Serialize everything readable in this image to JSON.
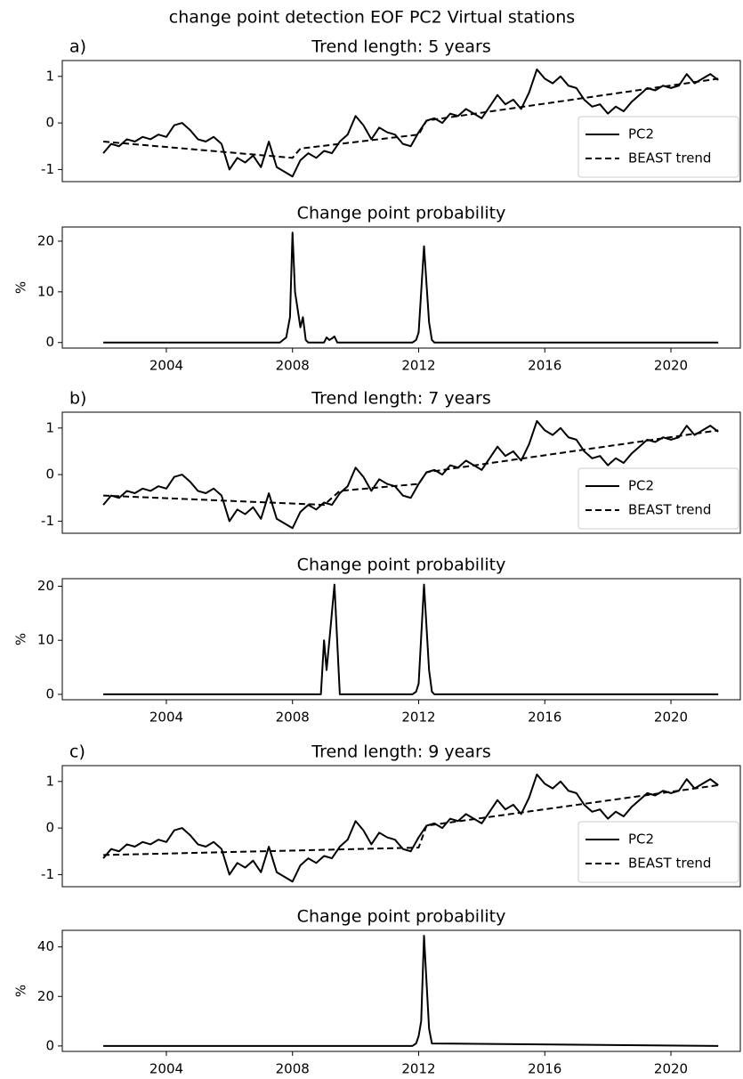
{
  "title": "change point detection EOF PC2 Virtual stations",
  "chart_data": [
    {
      "type": "line",
      "panel_label": "a)",
      "title": "Trend length: 5 years",
      "xlim": [
        2000.7,
        2022.2
      ],
      "ylim": [
        -1.26,
        1.34
      ],
      "yticks": [
        -1,
        0,
        1
      ],
      "legend": "lower right",
      "series": [
        {
          "name": "PC2",
          "color": "#000000",
          "linestyle": "solid",
          "x": [
            2002,
            2002.25,
            2002.5,
            2002.75,
            2003,
            2003.25,
            2003.5,
            2003.75,
            2004,
            2004.25,
            2004.5,
            2004.75,
            2005,
            2005.25,
            2005.5,
            2005.75,
            2006,
            2006.25,
            2006.5,
            2006.75,
            2007,
            2007.25,
            2007.5,
            2007.75,
            2008,
            2008.25,
            2008.5,
            2008.75,
            2009,
            2009.25,
            2009.5,
            2009.75,
            2010,
            2010.25,
            2010.5,
            2010.75,
            2011,
            2011.25,
            2011.5,
            2011.75,
            2012,
            2012.25,
            2012.5,
            2012.75,
            2013,
            2013.25,
            2013.5,
            2013.75,
            2014,
            2014.25,
            2014.5,
            2014.75,
            2015,
            2015.25,
            2015.5,
            2015.75,
            2016,
            2016.25,
            2016.5,
            2016.75,
            2017,
            2017.25,
            2017.5,
            2017.75,
            2018,
            2018.25,
            2018.5,
            2018.75,
            2019,
            2019.25,
            2019.5,
            2019.75,
            2020,
            2020.25,
            2020.5,
            2020.75,
            2021,
            2021.25,
            2021.5
          ],
          "values": [
            -0.65,
            -0.45,
            -0.5,
            -0.35,
            -0.4,
            -0.3,
            -0.35,
            -0.25,
            -0.3,
            -0.05,
            0.0,
            -0.15,
            -0.35,
            -0.4,
            -0.3,
            -0.45,
            -1.0,
            -0.75,
            -0.85,
            -0.7,
            -0.95,
            -0.4,
            -0.95,
            -1.05,
            -1.15,
            -0.8,
            -0.65,
            -0.75,
            -0.6,
            -0.65,
            -0.4,
            -0.25,
            0.15,
            -0.05,
            -0.35,
            -0.1,
            -0.2,
            -0.25,
            -0.45,
            -0.5,
            -0.2,
            0.05,
            0.1,
            0.0,
            0.2,
            0.15,
            0.3,
            0.2,
            0.1,
            0.35,
            0.6,
            0.4,
            0.5,
            0.3,
            0.65,
            1.15,
            0.95,
            0.85,
            1.0,
            0.8,
            0.75,
            0.5,
            0.35,
            0.4,
            0.2,
            0.35,
            0.25,
            0.45,
            0.6,
            0.75,
            0.7,
            0.8,
            0.75,
            0.8,
            1.05,
            0.85,
            0.95,
            1.05,
            0.92
          ]
        },
        {
          "name": "BEAST trend",
          "color": "#000000",
          "linestyle": "dashed",
          "x": [
            2002,
            2008,
            2008.25,
            2012,
            2012.25,
            2021.5
          ],
          "values": [
            -0.4,
            -0.75,
            -0.55,
            -0.25,
            0.05,
            0.95
          ]
        }
      ]
    },
    {
      "type": "line",
      "title": "Change point probability",
      "ylabel": "%",
      "xlim": [
        2000.7,
        2022.2
      ],
      "ylim": [
        -1.1,
        22.8
      ],
      "yticks": [
        0,
        10,
        20
      ],
      "xticks": [
        2004,
        2008,
        2012,
        2016,
        2020
      ],
      "series": [
        {
          "color": "#000000",
          "linestyle": "solid",
          "x": [
            2002,
            2007.6,
            2007.8,
            2007.92,
            2008.0,
            2008.08,
            2008.25,
            2008.33,
            2008.42,
            2008.5,
            2009.0,
            2009.08,
            2009.17,
            2009.25,
            2009.33,
            2009.42,
            2011.8,
            2011.92,
            2012.0,
            2012.17,
            2012.33,
            2012.42,
            2012.5,
            2021.5
          ],
          "values": [
            0,
            0,
            1,
            5,
            21.7,
            10,
            3,
            5,
            0.5,
            0,
            0,
            1,
            0.5,
            0.8,
            1.2,
            0,
            0,
            0.5,
            2,
            19,
            4,
            0.5,
            0,
            0
          ]
        }
      ]
    },
    {
      "type": "line",
      "panel_label": "b)",
      "title": "Trend length: 7 years",
      "xlim": [
        2000.7,
        2022.2
      ],
      "ylim": [
        -1.26,
        1.34
      ],
      "yticks": [
        -1,
        0,
        1
      ],
      "legend": "lower right",
      "series": [
        {
          "name": "PC2",
          "color": "#000000",
          "linestyle": "solid",
          "x": [
            2002,
            2002.25,
            2002.5,
            2002.75,
            2003,
            2003.25,
            2003.5,
            2003.75,
            2004,
            2004.25,
            2004.5,
            2004.75,
            2005,
            2005.25,
            2005.5,
            2005.75,
            2006,
            2006.25,
            2006.5,
            2006.75,
            2007,
            2007.25,
            2007.5,
            2007.75,
            2008,
            2008.25,
            2008.5,
            2008.75,
            2009,
            2009.25,
            2009.5,
            2009.75,
            2010,
            2010.25,
            2010.5,
            2010.75,
            2011,
            2011.25,
            2011.5,
            2011.75,
            2012,
            2012.25,
            2012.5,
            2012.75,
            2013,
            2013.25,
            2013.5,
            2013.75,
            2014,
            2014.25,
            2014.5,
            2014.75,
            2015,
            2015.25,
            2015.5,
            2015.75,
            2016,
            2016.25,
            2016.5,
            2016.75,
            2017,
            2017.25,
            2017.5,
            2017.75,
            2018,
            2018.25,
            2018.5,
            2018.75,
            2019,
            2019.25,
            2019.5,
            2019.75,
            2020,
            2020.25,
            2020.5,
            2020.75,
            2021,
            2021.25,
            2021.5
          ],
          "values": [
            -0.65,
            -0.45,
            -0.5,
            -0.35,
            -0.4,
            -0.3,
            -0.35,
            -0.25,
            -0.3,
            -0.05,
            0.0,
            -0.15,
            -0.35,
            -0.4,
            -0.3,
            -0.45,
            -1.0,
            -0.75,
            -0.85,
            -0.7,
            -0.95,
            -0.4,
            -0.95,
            -1.05,
            -1.15,
            -0.8,
            -0.65,
            -0.75,
            -0.6,
            -0.65,
            -0.4,
            -0.25,
            0.15,
            -0.05,
            -0.35,
            -0.1,
            -0.2,
            -0.25,
            -0.45,
            -0.5,
            -0.2,
            0.05,
            0.1,
            0.0,
            0.2,
            0.15,
            0.3,
            0.2,
            0.1,
            0.35,
            0.6,
            0.4,
            0.5,
            0.3,
            0.65,
            1.15,
            0.95,
            0.85,
            1.0,
            0.8,
            0.75,
            0.5,
            0.35,
            0.4,
            0.2,
            0.35,
            0.25,
            0.45,
            0.6,
            0.75,
            0.7,
            0.8,
            0.75,
            0.8,
            1.05,
            0.85,
            0.95,
            1.05,
            0.92
          ]
        },
        {
          "name": "BEAST trend",
          "color": "#000000",
          "linestyle": "dashed",
          "x": [
            2002,
            2009,
            2009.5,
            2012,
            2012.25,
            2021.5
          ],
          "values": [
            -0.45,
            -0.65,
            -0.35,
            -0.2,
            0.05,
            0.95
          ]
        }
      ]
    },
    {
      "type": "line",
      "title": "Change point probability",
      "ylabel": "%",
      "xlim": [
        2000.7,
        2022.2
      ],
      "ylim": [
        -1.0,
        21.4
      ],
      "yticks": [
        0,
        10,
        20
      ],
      "xticks": [
        2004,
        2008,
        2012,
        2016,
        2020
      ],
      "series": [
        {
          "color": "#000000",
          "linestyle": "solid",
          "x": [
            2002,
            2008.9,
            2009.0,
            2009.08,
            2009.17,
            2009.33,
            2009.5,
            2011.8,
            2011.92,
            2012.0,
            2012.17,
            2012.33,
            2012.42,
            2012.5,
            2021.5
          ],
          "values": [
            0,
            0,
            10,
            4.5,
            10,
            20.3,
            0,
            0,
            0.5,
            2,
            20.3,
            4.5,
            0.5,
            0,
            0
          ]
        }
      ]
    },
    {
      "type": "line",
      "panel_label": "c)",
      "title": "Trend length: 9 years",
      "xlim": [
        2000.7,
        2022.2
      ],
      "ylim": [
        -1.26,
        1.34
      ],
      "yticks": [
        -1,
        0,
        1
      ],
      "legend": "lower right",
      "series": [
        {
          "name": "PC2",
          "color": "#000000",
          "linestyle": "solid",
          "x": [
            2002,
            2002.25,
            2002.5,
            2002.75,
            2003,
            2003.25,
            2003.5,
            2003.75,
            2004,
            2004.25,
            2004.5,
            2004.75,
            2005,
            2005.25,
            2005.5,
            2005.75,
            2006,
            2006.25,
            2006.5,
            2006.75,
            2007,
            2007.25,
            2007.5,
            2007.75,
            2008,
            2008.25,
            2008.5,
            2008.75,
            2009,
            2009.25,
            2009.5,
            2009.75,
            2010,
            2010.25,
            2010.5,
            2010.75,
            2011,
            2011.25,
            2011.5,
            2011.75,
            2012,
            2012.25,
            2012.5,
            2012.75,
            2013,
            2013.25,
            2013.5,
            2013.75,
            2014,
            2014.25,
            2014.5,
            2014.75,
            2015,
            2015.25,
            2015.5,
            2015.75,
            2016,
            2016.25,
            2016.5,
            2016.75,
            2017,
            2017.25,
            2017.5,
            2017.75,
            2018,
            2018.25,
            2018.5,
            2018.75,
            2019,
            2019.25,
            2019.5,
            2019.75,
            2020,
            2020.25,
            2020.5,
            2020.75,
            2021,
            2021.25,
            2021.5
          ],
          "values": [
            -0.65,
            -0.45,
            -0.5,
            -0.35,
            -0.4,
            -0.3,
            -0.35,
            -0.25,
            -0.3,
            -0.05,
            0.0,
            -0.15,
            -0.35,
            -0.4,
            -0.3,
            -0.45,
            -1.0,
            -0.75,
            -0.85,
            -0.7,
            -0.95,
            -0.4,
            -0.95,
            -1.05,
            -1.15,
            -0.8,
            -0.65,
            -0.75,
            -0.6,
            -0.65,
            -0.4,
            -0.25,
            0.15,
            -0.05,
            -0.35,
            -0.1,
            -0.2,
            -0.25,
            -0.45,
            -0.5,
            -0.2,
            0.05,
            0.1,
            0.0,
            0.2,
            0.15,
            0.3,
            0.2,
            0.1,
            0.35,
            0.6,
            0.4,
            0.5,
            0.3,
            0.65,
            1.15,
            0.95,
            0.85,
            1.0,
            0.8,
            0.75,
            0.5,
            0.35,
            0.4,
            0.2,
            0.35,
            0.25,
            0.45,
            0.6,
            0.75,
            0.7,
            0.8,
            0.75,
            0.8,
            1.05,
            0.85,
            0.95,
            1.05,
            0.92
          ]
        },
        {
          "name": "BEAST trend",
          "color": "#000000",
          "linestyle": "dashed",
          "x": [
            2002,
            2012,
            2012.25,
            2021.5
          ],
          "values": [
            -0.58,
            -0.42,
            0.05,
            0.92
          ]
        }
      ]
    },
    {
      "type": "line",
      "title": "Change point probability",
      "ylabel": "%",
      "xlim": [
        2000.7,
        2022.2
      ],
      "ylim": [
        -2.2,
        46.7
      ],
      "yticks": [
        0,
        20,
        40
      ],
      "xticks": [
        2004,
        2008,
        2012,
        2016,
        2020
      ],
      "series": [
        {
          "color": "#000000",
          "linestyle": "solid",
          "x": [
            2002,
            2011.8,
            2011.92,
            2012.0,
            2012.08,
            2012.17,
            2012.33,
            2012.42,
            2021.5
          ],
          "values": [
            0,
            0,
            1,
            4,
            10,
            44.5,
            7,
            1,
            0
          ]
        }
      ]
    }
  ]
}
